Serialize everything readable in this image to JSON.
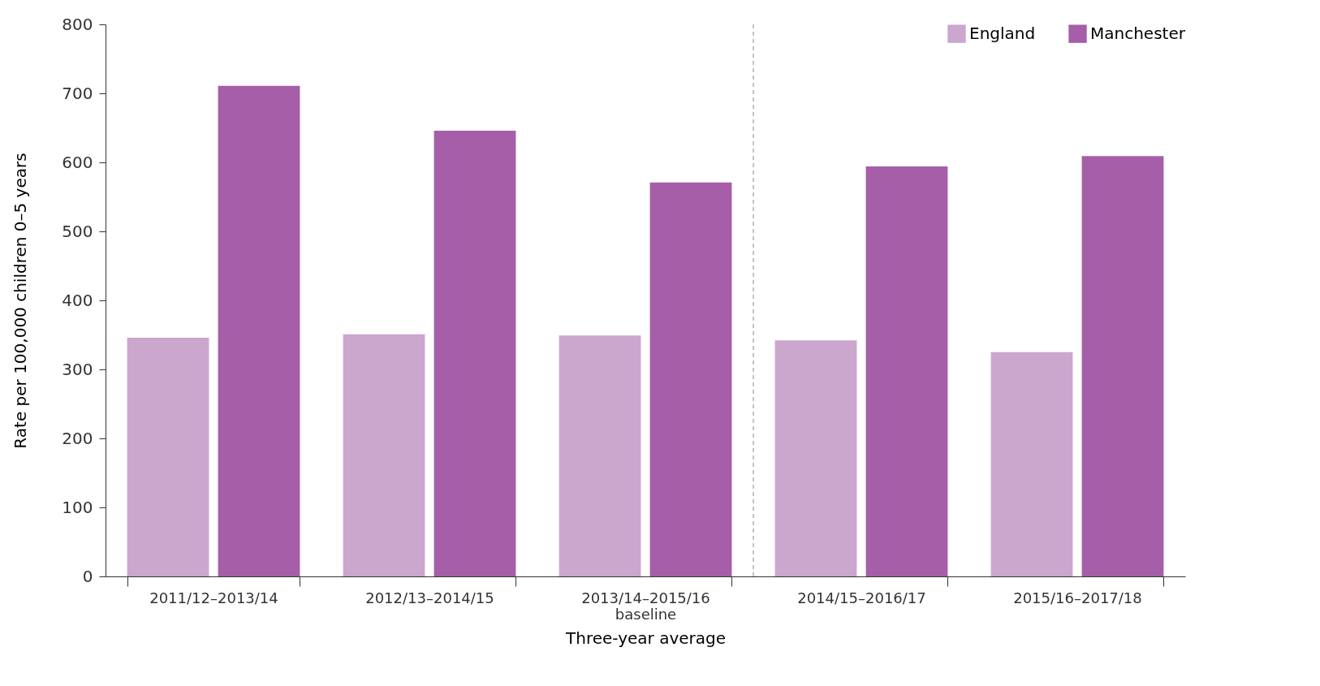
{
  "chart_data": {
    "type": "bar",
    "xlabel": "Three-year average",
    "ylabel": "Rate per 100,000 children 0–5 years",
    "categories": [
      "2011/12–2013/14",
      "2012/13–2014/15",
      "2013/14–2015/16\nbaseline",
      "2014/15–2016/17",
      "2015/16–2017/18"
    ],
    "series": [
      {
        "name": "England",
        "color": "#cba6cd",
        "values": [
          346,
          351,
          349,
          342,
          325
        ]
      },
      {
        "name": "Manchester",
        "color": "#a55ea7",
        "values": [
          711,
          646,
          571,
          594,
          609
        ]
      }
    ],
    "ylim": [
      0,
      800
    ],
    "yticks": [
      0,
      100,
      200,
      300,
      400,
      500,
      600,
      700,
      800
    ],
    "grid": false,
    "legend": "top right"
  }
}
